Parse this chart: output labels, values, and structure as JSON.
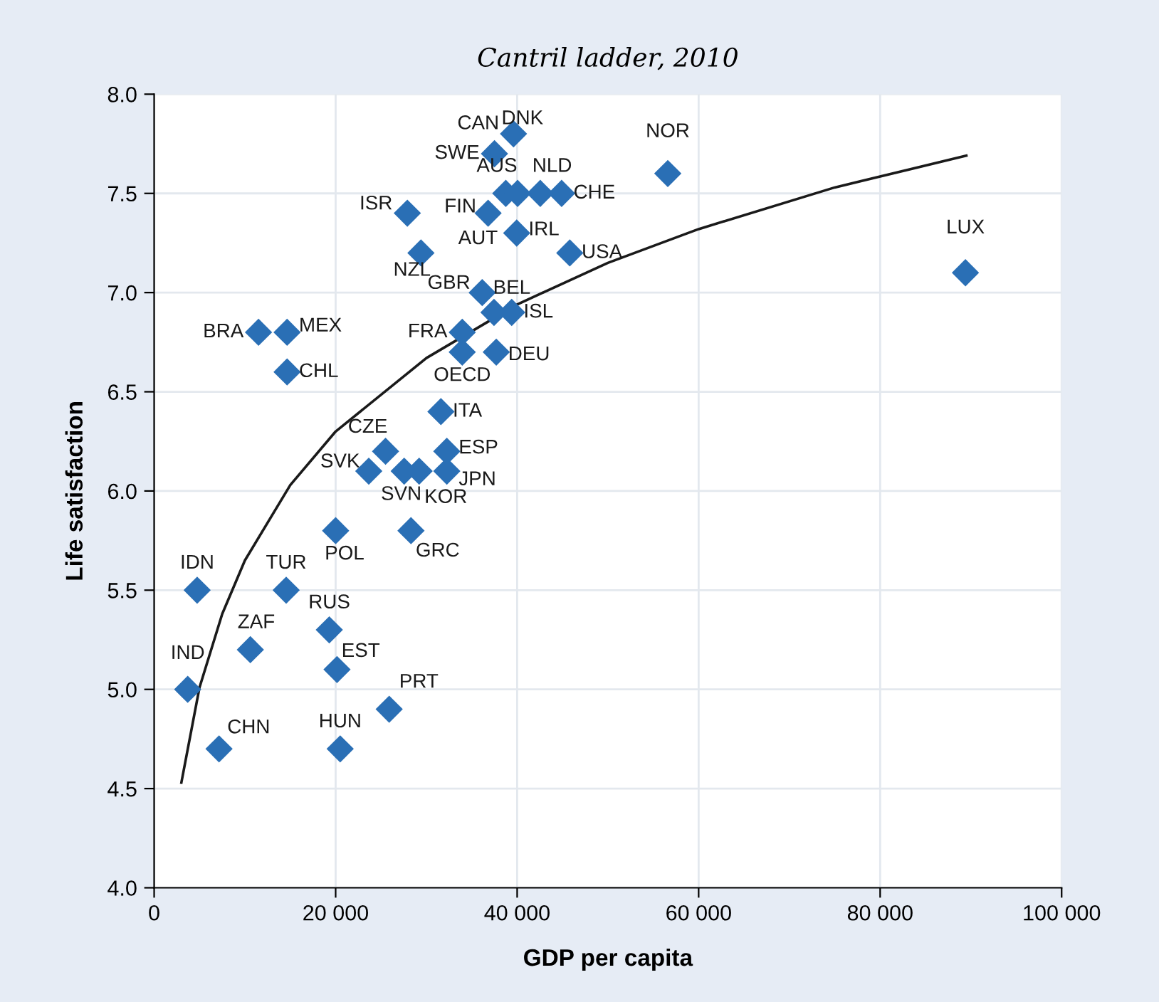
{
  "chart_data": {
    "type": "scatter",
    "title": "Cantril ladder, 2010",
    "xlabel": "GDP per capita",
    "ylabel": "Life satisfaction",
    "xlim": [
      0,
      100000
    ],
    "ylim": [
      4.0,
      8.0
    ],
    "xticks": [
      {
        "value": 0,
        "label": "0"
      },
      {
        "value": 20000,
        "label": "20 000"
      },
      {
        "value": 40000,
        "label": "40 000"
      },
      {
        "value": 60000,
        "label": "60 000"
      },
      {
        "value": 80000,
        "label": "80 000"
      },
      {
        "value": 100000,
        "label": "100 000"
      }
    ],
    "yticks": [
      {
        "value": 4.0,
        "label": "4.0"
      },
      {
        "value": 4.5,
        "label": "4.5"
      },
      {
        "value": 5.0,
        "label": "5.0"
      },
      {
        "value": 5.5,
        "label": "5.5"
      },
      {
        "value": 6.0,
        "label": "6.0"
      },
      {
        "value": 6.5,
        "label": "6.5"
      },
      {
        "value": 7.0,
        "label": "7.0"
      },
      {
        "value": 7.5,
        "label": "7.5"
      },
      {
        "value": 8.0,
        "label": "8.0"
      }
    ],
    "grid": true,
    "legend": false,
    "series": [
      {
        "marker": "diamond",
        "color": "#2a6fb5",
        "x": [
          39600,
          38000,
          37500,
          38750,
          42550,
          44900,
          27900,
          36800,
          39500,
          39950,
          45800,
          29400,
          36150,
          37450,
          39400,
          33950,
          33950,
          37700,
          11500,
          14650,
          14650,
          31600,
          25500,
          32250,
          23650,
          27550,
          29200,
          32250,
          20000,
          28300,
          4740,
          14550,
          19300,
          10600,
          20150,
          3700,
          25900,
          7150,
          20500,
          56600,
          89400,
          40050
        ],
        "values": [
          7.8,
          null,
          7.7,
          7.5,
          7.5,
          7.5,
          7.4,
          7.4,
          null,
          7.3,
          7.2,
          7.2,
          7.0,
          6.9,
          6.9,
          6.8,
          6.7,
          6.7,
          6.8,
          6.8,
          6.6,
          6.4,
          6.2,
          6.2,
          6.1,
          6.1,
          6.1,
          6.1,
          5.8,
          5.8,
          5.5,
          5.5,
          5.3,
          5.2,
          5.1,
          5.0,
          4.9,
          4.7,
          4.7,
          7.6,
          7.1,
          7.5
        ]
      },
      {
        "type": "line",
        "marker": "none",
        "color": "#1a1a1a",
        "line_style": "solid",
        "x": [
          3000,
          5000,
          7500,
          10000,
          15000,
          20000,
          30000,
          40000,
          50000,
          60000,
          75000,
          89500
        ],
        "values": [
          4.53,
          5.01,
          5.38,
          5.65,
          6.03,
          6.3,
          6.67,
          6.94,
          7.15,
          7.32,
          7.53,
          7.69
        ]
      }
    ],
    "annotations": [
      {
        "text": "DNK",
        "x": 39600,
        "y": 7.8
      },
      {
        "text": "CAN",
        "x": 38000,
        "y": 7.7
      },
      {
        "text": "SWE",
        "x": 37500,
        "y": 7.7
      },
      {
        "text": "AUS",
        "x": 38750,
        "y": 7.5
      },
      {
        "text": "NLD",
        "x": 42550,
        "y": 7.5
      },
      {
        "text": "CHE",
        "x": 44900,
        "y": 7.5
      },
      {
        "text": "ISR",
        "x": 27900,
        "y": 7.4
      },
      {
        "text": "FIN",
        "x": 36800,
        "y": 7.4
      },
      {
        "text": "AUT",
        "x": 39500,
        "y": 7.3
      },
      {
        "text": "IRL",
        "x": 39950,
        "y": 7.3
      },
      {
        "text": "USA",
        "x": 45800,
        "y": 7.2
      },
      {
        "text": "NZL",
        "x": 29400,
        "y": 7.2
      },
      {
        "text": "GBR",
        "x": 36150,
        "y": 7.0
      },
      {
        "text": "BEL",
        "x": 37450,
        "y": 6.9
      },
      {
        "text": "ISL",
        "x": 39400,
        "y": 6.9
      },
      {
        "text": "FRA",
        "x": 33950,
        "y": 6.8
      },
      {
        "text": "OECD",
        "x": 33950,
        "y": 6.7
      },
      {
        "text": "DEU",
        "x": 37700,
        "y": 6.7
      },
      {
        "text": "BRA",
        "x": 11500,
        "y": 6.8
      },
      {
        "text": "MEX",
        "x": 14650,
        "y": 6.8
      },
      {
        "text": "CHL",
        "x": 14650,
        "y": 6.6
      },
      {
        "text": "ITA",
        "x": 31600,
        "y": 6.4
      },
      {
        "text": "CZE",
        "x": 25500,
        "y": 6.2
      },
      {
        "text": "ESP",
        "x": 32250,
        "y": 6.2
      },
      {
        "text": "SVK",
        "x": 23650,
        "y": 6.1
      },
      {
        "text": "SVN",
        "x": 27550,
        "y": 6.1
      },
      {
        "text": "KOR",
        "x": 29200,
        "y": 6.1
      },
      {
        "text": "JPN",
        "x": 32250,
        "y": 6.1
      },
      {
        "text": "POL",
        "x": 20000,
        "y": 5.8
      },
      {
        "text": "GRC",
        "x": 28300,
        "y": 5.8
      },
      {
        "text": "IDN",
        "x": 4740,
        "y": 5.5
      },
      {
        "text": "TUR",
        "x": 14550,
        "y": 5.5
      },
      {
        "text": "RUS",
        "x": 19300,
        "y": 5.3
      },
      {
        "text": "ZAF",
        "x": 10600,
        "y": 5.2
      },
      {
        "text": "EST",
        "x": 20150,
        "y": 5.1
      },
      {
        "text": "IND",
        "x": 3700,
        "y": 5.0
      },
      {
        "text": "PRT",
        "x": 25900,
        "y": 4.9
      },
      {
        "text": "CHN",
        "x": 7150,
        "y": 4.7
      },
      {
        "text": "HUN",
        "x": 20500,
        "y": 4.7
      },
      {
        "text": "NOR",
        "x": 56600,
        "y": 7.6
      },
      {
        "text": "LUX",
        "x": 89400,
        "y": 7.1
      }
    ]
  }
}
